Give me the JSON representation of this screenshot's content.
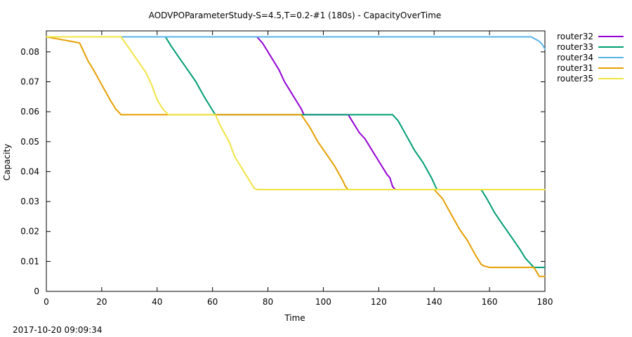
{
  "timestamp": "2017-10-20 09:09:34",
  "chart_data": {
    "type": "line",
    "title": "AODVPOParameterStudy-S=4.5,T=0.2-#1 (180s) - CapacityOverTime",
    "xlabel": "Time",
    "ylabel": "Capacity",
    "xlim": [
      0,
      180
    ],
    "ylim": [
      0,
      0.087
    ],
    "x_ticks": [
      "0",
      "20",
      "40",
      "60",
      "80",
      "100",
      "120",
      "140",
      "160",
      "180"
    ],
    "y_ticks": [
      "0",
      "0.01",
      "0.02",
      "0.03",
      "0.04",
      "0.05",
      "0.06",
      "0.07",
      "0.08"
    ],
    "grid": false,
    "legend_position": "outside-top-right",
    "series": [
      {
        "name": "router32",
        "color": "#9400d3",
        "x": [
          0,
          76,
          78,
          80,
          82,
          84,
          86,
          88,
          90,
          92,
          93,
          109,
          111,
          113,
          115,
          117,
          119,
          121,
          123,
          124,
          125,
          126
        ],
        "y": [
          0.085,
          0.085,
          0.083,
          0.08,
          0.077,
          0.074,
          0.07,
          0.067,
          0.064,
          0.061,
          0.059,
          0.059,
          0.056,
          0.053,
          0.051,
          0.048,
          0.045,
          0.042,
          0.039,
          0.038,
          0.035,
          0.034
        ]
      },
      {
        "name": "router33",
        "color": "#009e73",
        "x": [
          0,
          43,
          45,
          48,
          51,
          54,
          57,
          59,
          61,
          125,
          127,
          130,
          133,
          136,
          139,
          141,
          157,
          159,
          162,
          165,
          168,
          171,
          173,
          175,
          176,
          180
        ],
        "y": [
          0.085,
          0.085,
          0.082,
          0.078,
          0.074,
          0.07,
          0.065,
          0.062,
          0.059,
          0.059,
          0.057,
          0.052,
          0.047,
          0.043,
          0.038,
          0.034,
          0.034,
          0.031,
          0.026,
          0.022,
          0.018,
          0.014,
          0.011,
          0.009,
          0.008,
          0.008
        ]
      },
      {
        "name": "router34",
        "color": "#56b4e9",
        "x": [
          0,
          175,
          177,
          178,
          179,
          180
        ],
        "y": [
          0.085,
          0.085,
          0.084,
          0.0835,
          0.0825,
          0.081
        ]
      },
      {
        "name": "router31",
        "color": "#e69f00",
        "x": [
          0,
          3,
          6,
          9,
          12,
          15,
          17,
          20,
          23,
          25,
          27,
          92,
          95,
          98,
          101,
          104,
          107,
          108,
          109,
          140,
          143,
          146,
          149,
          152,
          155,
          157,
          158,
          160,
          170,
          176,
          178,
          180
        ],
        "y": [
          0.085,
          0.0845,
          0.084,
          0.0835,
          0.083,
          0.077,
          0.074,
          0.069,
          0.064,
          0.061,
          0.059,
          0.059,
          0.055,
          0.05,
          0.046,
          0.042,
          0.037,
          0.035,
          0.034,
          0.034,
          0.031,
          0.026,
          0.021,
          0.017,
          0.012,
          0.009,
          0.0085,
          0.008,
          0.008,
          0.008,
          0.005,
          0.005
        ]
      },
      {
        "name": "router35",
        "color": "#f0e442",
        "x": [
          0,
          27,
          30,
          33,
          36,
          38,
          40,
          42,
          44,
          61,
          63,
          66,
          68,
          70,
          72,
          74,
          75,
          76,
          180
        ],
        "y": [
          0.085,
          0.085,
          0.081,
          0.077,
          0.073,
          0.069,
          0.064,
          0.061,
          0.059,
          0.059,
          0.055,
          0.05,
          0.045,
          0.042,
          0.039,
          0.036,
          0.0345,
          0.034,
          0.034
        ]
      }
    ]
  }
}
